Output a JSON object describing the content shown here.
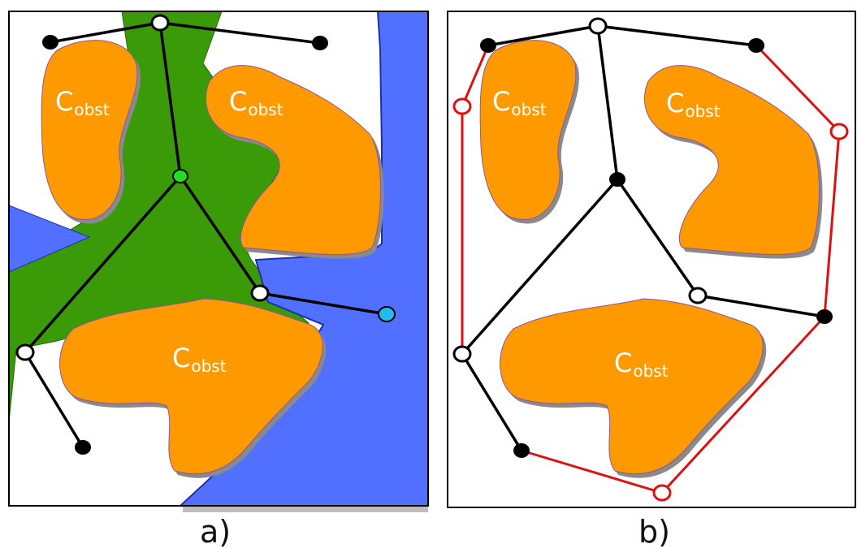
{
  "panels": [
    {
      "id": "a",
      "caption": "a)",
      "obstacle_main": "C",
      "obstacle_sub": "obst"
    },
    {
      "id": "b",
      "caption": "b)",
      "obstacle_main": "C",
      "obstacle_sub": "obst"
    }
  ],
  "colors": {
    "obstacle": "#ff9900",
    "obstacle_shadow": "#8a8a8a",
    "region_green": "#3a9a08",
    "region_blue": "#5270ff",
    "edge": "#000000",
    "boundary_edge": "#dd1111",
    "node_root": "#22dd22",
    "node_goal": "#22bbee",
    "node_filled": "#000000",
    "node_hollow_fill": "#ffffff"
  }
}
